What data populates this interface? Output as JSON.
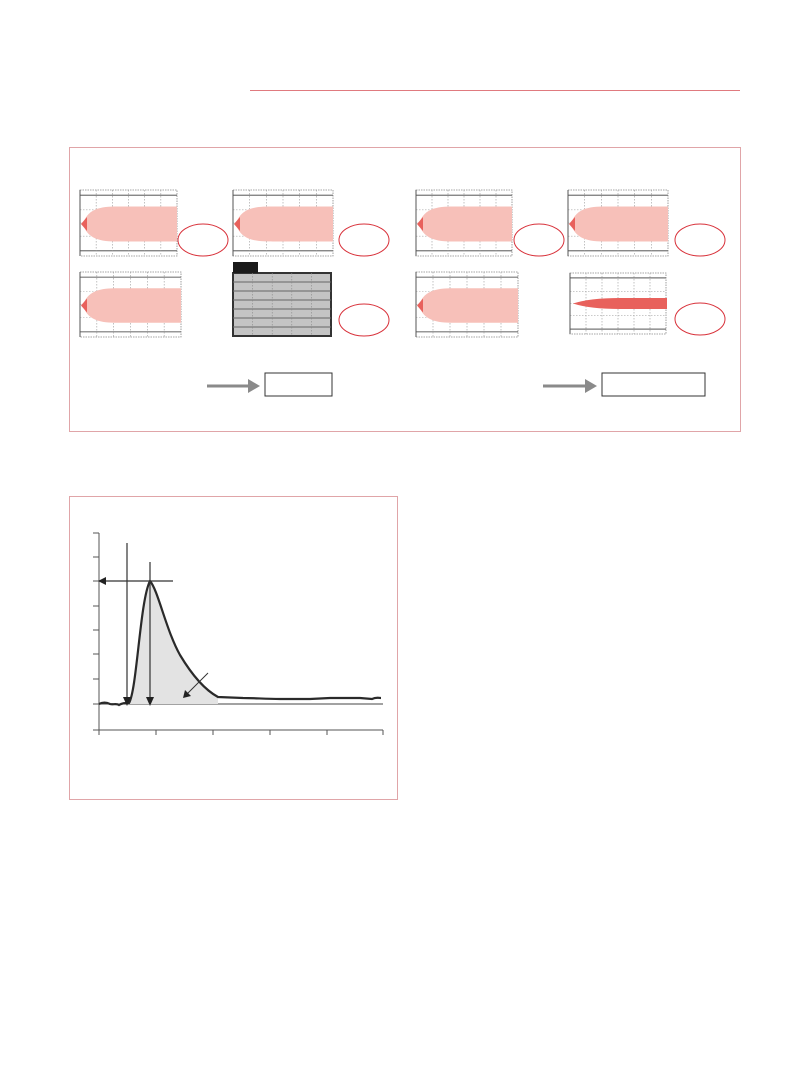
{
  "colors": {
    "accent_rule": "#e07a7f",
    "frame_border": "#e0a5a8",
    "pink_fill": "#f7c0b9",
    "red_mark": "#e8615c",
    "ellipse_stroke": "#d8313a",
    "gray_panel": "#c4c4c4",
    "curve": "#2a2a2a",
    "area_fill": "#e3e3e3",
    "arrow_gray": "#8a8a8a"
  },
  "figure_1": {
    "panels": [
      {
        "kind": "pink-plume",
        "has_ellipse": true
      },
      {
        "kind": "pink-plume",
        "has_ellipse": true
      },
      {
        "kind": "pink-plume",
        "has_ellipse": true
      },
      {
        "kind": "pink-plume",
        "has_ellipse": true
      },
      {
        "kind": "pink-plume",
        "has_ellipse": false
      },
      {
        "kind": "gray-grid",
        "has_ellipse": true
      },
      {
        "kind": "pink-plume",
        "has_ellipse": false
      },
      {
        "kind": "red-band",
        "has_ellipse": true
      }
    ]
  },
  "figure_2": {
    "icons": [
      "arrow-down-icon",
      "arrow-down-icon",
      "arrow-left-icon",
      "arrow-pointer-icon"
    ]
  }
}
